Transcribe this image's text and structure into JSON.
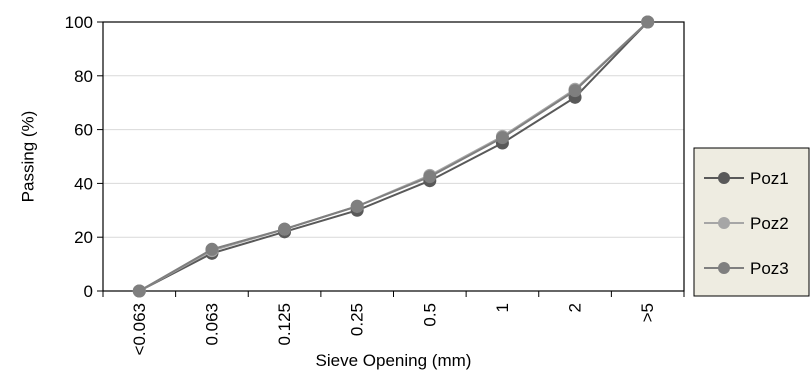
{
  "chart_data": {
    "type": "line",
    "xlabel": "Sieve Opening (mm)",
    "ylabel": "Passing (%)",
    "categories": [
      "<0.063",
      "0.063",
      "0.125",
      "0.25",
      "0.5",
      "1",
      "2",
      ">5"
    ],
    "ylim": [
      0,
      100
    ],
    "yticks": [
      0,
      20,
      40,
      60,
      80,
      100
    ],
    "grid": true,
    "legend_position": "right",
    "series": [
      {
        "name": "Poz1",
        "color": "#595959",
        "values": [
          0,
          14,
          22,
          30,
          41,
          55,
          72,
          100
        ]
      },
      {
        "name": "Poz2",
        "color": "#a6a6a6",
        "values": [
          0,
          15,
          23,
          31.5,
          43,
          57.5,
          75,
          100
        ]
      },
      {
        "name": "Poz3",
        "color": "#7f7f7f",
        "values": [
          0,
          15.5,
          23,
          31.5,
          42.5,
          57,
          74.5,
          100
        ]
      }
    ]
  }
}
